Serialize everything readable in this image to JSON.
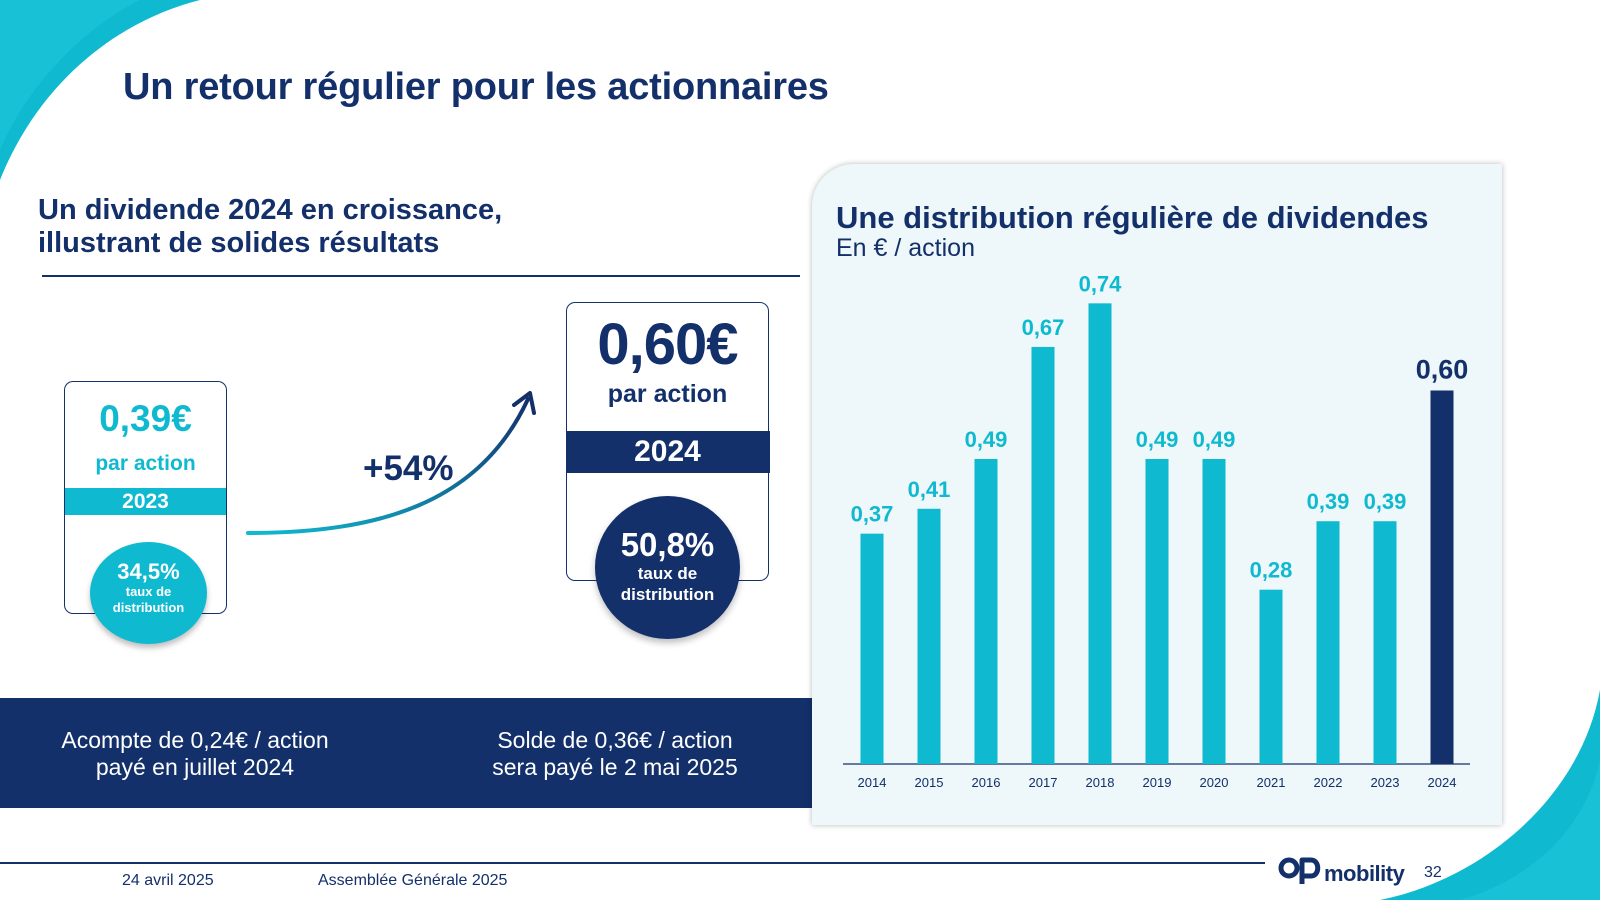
{
  "title": "Un retour régulier pour les actionnaires",
  "left": {
    "subtitle_line1": "Un dividende 2024 en croissance,",
    "subtitle_line2": "illustrant de solides résultats",
    "card_2023": {
      "amount": "0,39€",
      "per": "par action",
      "year": "2023",
      "rate": "34,5%",
      "rate_label_line1": "taux de",
      "rate_label_line2": "distribution"
    },
    "growth": "+54%",
    "card_2024": {
      "amount": "0,60€",
      "per": "par action",
      "year": "2024",
      "rate": "50,8%",
      "rate_label_line1": "taux de",
      "rate_label_line2": "distribution"
    },
    "interim_line1": "Acompte de 0,24€ / action",
    "interim_line2": "payé en juillet 2024",
    "balance_line1": "Solde de 0,36€ / action",
    "balance_line2": "sera payé le 2 mai 2025"
  },
  "chart_data": {
    "type": "bar",
    "title": "Une distribution régulière de dividendes",
    "subtitle": "En € / action",
    "categories": [
      "2014",
      "2015",
      "2016",
      "2017",
      "2018",
      "2019",
      "2020",
      "2021",
      "2022",
      "2023",
      "2024"
    ],
    "values": [
      0.37,
      0.41,
      0.49,
      0.67,
      0.74,
      0.49,
      0.49,
      0.28,
      0.39,
      0.39,
      0.6
    ],
    "labels": [
      "0,37",
      "0,41",
      "0,49",
      "0,67",
      "0,74",
      "0,49",
      "0,49",
      "0,28",
      "0,39",
      "0,39",
      "0,60"
    ],
    "ylim": [
      0,
      0.8
    ],
    "grid": false,
    "highlight_category": "2024",
    "bar_color": "#0fbad0",
    "highlight_color": "#13306b"
  },
  "footer": {
    "date": "24 avril 2025",
    "event": "Assemblée Générale 2025",
    "brand": "mobility",
    "page": "32"
  },
  "colors": {
    "navy": "#13306b",
    "cyan": "#0fbad0"
  }
}
